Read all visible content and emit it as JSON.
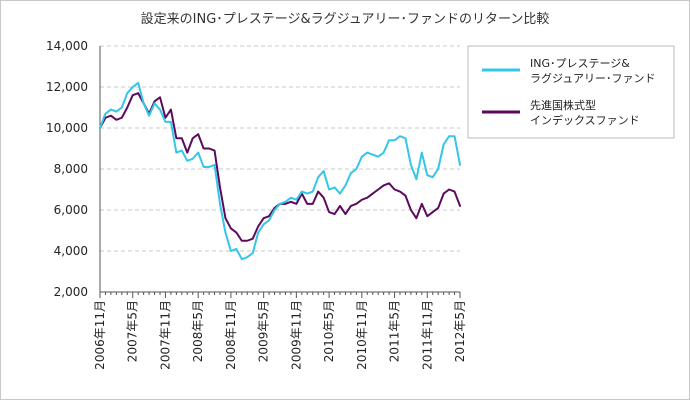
{
  "chart_data": {
    "type": "line",
    "title": "設定来のING･プレステージ&ラグジュアリー･ファンドのリターン比較",
    "xlabel": "",
    "ylabel": "",
    "ylim": [
      2000,
      14000
    ],
    "yticks": [
      "2,000",
      "4,000",
      "6,000",
      "8,000",
      "10,000",
      "12,000",
      "14,000"
    ],
    "ytick_values": [
      2000,
      4000,
      6000,
      8000,
      10000,
      12000,
      14000
    ],
    "grid": true,
    "legend_position": "top-right",
    "x_labels": [
      "2006年11月",
      "2007年5月",
      "2007年11月",
      "2008年5月",
      "2008年11月",
      "2009年5月",
      "2009年11月",
      "2010年5月",
      "2010年11月",
      "2011年5月",
      "2011年11月",
      "2012年5月"
    ],
    "x_label_index": [
      0,
      6,
      12,
      18,
      24,
      30,
      36,
      42,
      48,
      54,
      60,
      66
    ],
    "series": [
      {
        "name": "ING･プレステージ&ラグジュアリー･ファンド",
        "legend_lines": [
          "ING･プレステージ&",
          "ラグジュアリー･ファンド"
        ],
        "color": "#33c6e8",
        "values": [
          10000,
          10700,
          10900,
          10800,
          11000,
          11700,
          12000,
          12200,
          11200,
          10600,
          11200,
          10900,
          10300,
          10300,
          8800,
          8900,
          8400,
          8500,
          8800,
          8100,
          8100,
          8200,
          6300,
          4900,
          4000,
          4100,
          3600,
          3700,
          3900,
          4900,
          5300,
          5500,
          6000,
          6300,
          6400,
          6600,
          6500,
          6900,
          6800,
          6900,
          7600,
          7900,
          7000,
          7100,
          6800,
          7200,
          7800,
          8000,
          8600,
          8800,
          8700,
          8600,
          8800,
          9400,
          9400,
          9600,
          9500,
          8200,
          7500,
          8800,
          7700,
          7600,
          8000,
          9200,
          9600,
          9600,
          8200
        ]
      },
      {
        "name": "先進国株式型インデックスファンド",
        "legend_lines": [
          "先進国株式型",
          "インデックスファンド"
        ],
        "color": "#5b0a5e",
        "values": [
          10000,
          10500,
          10600,
          10400,
          10500,
          11000,
          11600,
          11700,
          11200,
          10700,
          11300,
          11500,
          10500,
          10900,
          9500,
          9500,
          8800,
          9500,
          9700,
          9000,
          9000,
          8900,
          7100,
          5600,
          5100,
          4900,
          4500,
          4500,
          4600,
          5200,
          5600,
          5700,
          6100,
          6300,
          6300,
          6400,
          6300,
          6800,
          6300,
          6300,
          6900,
          6600,
          5900,
          5800,
          6200,
          5800,
          6200,
          6300,
          6500,
          6600,
          6800,
          7000,
          7200,
          7300,
          7000,
          6900,
          6700,
          6000,
          5600,
          6300,
          5700,
          5900,
          6100,
          6800,
          7000,
          6900,
          6200
        ]
      }
    ]
  }
}
